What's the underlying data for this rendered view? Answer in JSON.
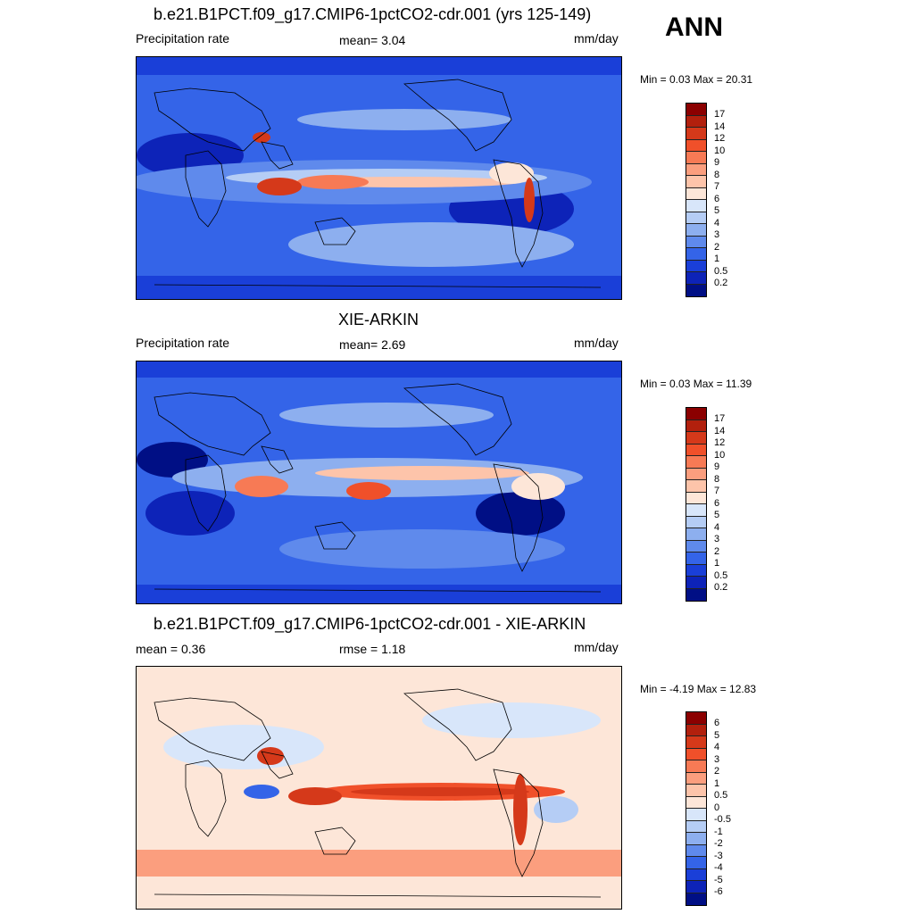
{
  "season": "ANN",
  "units": "mm/day",
  "panels": [
    {
      "title": "b.e21.B1PCT.f09_g17.CMIP6-1pctCO2-cdr.001 (yrs 125-149)",
      "left_label": "Precipitation rate",
      "center_label": "mean=   3.04",
      "right_label": "mm/day",
      "minmax": "Min =   0.03 Max =  20.31",
      "colorbar_labels": [
        "17",
        "14",
        "12",
        "10",
        "9",
        "8",
        "7",
        "6",
        "5",
        "4",
        "3",
        "2",
        "1",
        "0.5",
        "0.2"
      ],
      "colorbar_colors": [
        "#8b0000",
        "#b2200d",
        "#d5391a",
        "#f0502a",
        "#f77a55",
        "#fb9e7e",
        "#fdc4aa",
        "#fde6d8",
        "#d8e6fa",
        "#b5cdf5",
        "#8dafef",
        "#5f8aec",
        "#3464e8",
        "#1a3fd8",
        "#0d23b8",
        "#000f85"
      ],
      "map_style": "abs"
    },
    {
      "title": "XIE-ARKIN",
      "left_label": "Precipitation rate",
      "center_label": "mean=   2.69",
      "right_label": "mm/day",
      "minmax": "Min =   0.03 Max =  11.39",
      "colorbar_labels": [
        "17",
        "14",
        "12",
        "10",
        "9",
        "8",
        "7",
        "6",
        "5",
        "4",
        "3",
        "2",
        "1",
        "0.5",
        "0.2"
      ],
      "colorbar_colors": [
        "#8b0000",
        "#b2200d",
        "#d5391a",
        "#f0502a",
        "#f77a55",
        "#fb9e7e",
        "#fdc4aa",
        "#fde6d8",
        "#d8e6fa",
        "#b5cdf5",
        "#8dafef",
        "#5f8aec",
        "#3464e8",
        "#1a3fd8",
        "#0d23b8",
        "#000f85"
      ],
      "map_style": "abs"
    },
    {
      "title": "b.e21.B1PCT.f09_g17.CMIP6-1pctCO2-cdr.001 - XIE-ARKIN",
      "left_label": "mean =   0.36",
      "center_label": "rmse =   1.18",
      "right_label": "mm/day",
      "minmax": "Min =  -4.19 Max =  12.83",
      "colorbar_labels": [
        "6",
        "5",
        "4",
        "3",
        "2",
        "1",
        "0.5",
        "0",
        "-0.5",
        "-1",
        "-2",
        "-3",
        "-4",
        "-5",
        "-6"
      ],
      "colorbar_colors": [
        "#8b0000",
        "#b2200d",
        "#d5391a",
        "#f0502a",
        "#f77a55",
        "#fb9e7e",
        "#fdc4aa",
        "#fde6d8",
        "#d8e6fa",
        "#b5cdf5",
        "#8dafef",
        "#5f8aec",
        "#3464e8",
        "#1a3fd8",
        "#0d23b8",
        "#000f85"
      ],
      "map_style": "diff"
    }
  ]
}
